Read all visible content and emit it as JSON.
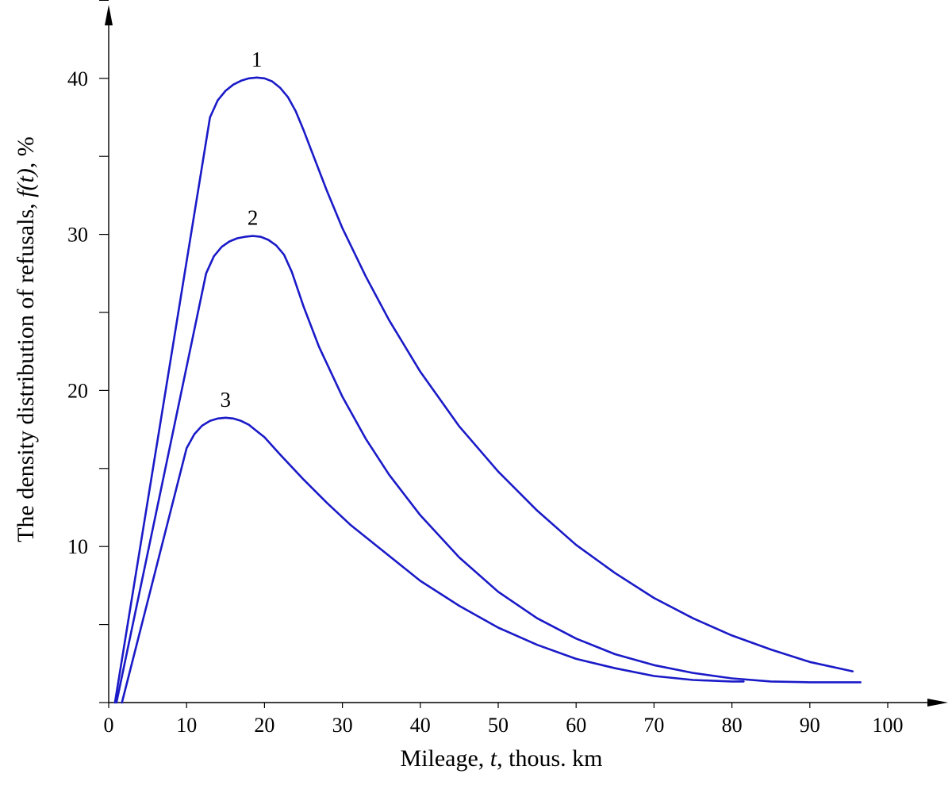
{
  "chart_data": {
    "type": "line",
    "title": "",
    "xlabel": {
      "prefix": "Mileage, ",
      "italic": "t",
      "suffix": ", thous. km"
    },
    "ylabel": {
      "prefix": "The density distribution of refusals, ",
      "italic": "f(t)",
      "suffix": ", %"
    },
    "xlim": [
      0,
      105
    ],
    "ylim": [
      0,
      45
    ],
    "x_ticks": [
      0,
      10,
      20,
      30,
      40,
      50,
      60,
      70,
      80,
      90,
      100
    ],
    "x_tick_labels": [
      "0",
      "10",
      "20",
      "30",
      "40",
      "50",
      "60",
      "70",
      "80",
      "90",
      "100"
    ],
    "y_ticks": [
      0,
      5,
      10,
      15,
      20,
      25,
      30,
      35,
      40,
      45
    ],
    "y_tick_labels": [
      "",
      "",
      "10",
      "",
      "20",
      "",
      "30",
      "",
      "40",
      ""
    ],
    "grid": false,
    "legend": "none",
    "line_color": "#1a1ac8",
    "series": [
      {
        "name": "1",
        "x": [
          0.8,
          13,
          14,
          15,
          16,
          17,
          18,
          19,
          20,
          21,
          22,
          23,
          24,
          25,
          26,
          28,
          30,
          33,
          36,
          40,
          45,
          50,
          55,
          60,
          65,
          70,
          75,
          80,
          85,
          90,
          95.5
        ],
        "y": [
          0,
          37.5,
          38.6,
          39.2,
          39.6,
          39.85,
          40.0,
          40.05,
          40.0,
          39.8,
          39.4,
          38.8,
          37.9,
          36.7,
          35.4,
          32.8,
          30.4,
          27.3,
          24.5,
          21.2,
          17.7,
          14.8,
          12.3,
          10.1,
          8.3,
          6.7,
          5.4,
          4.3,
          3.4,
          2.6,
          2.0
        ]
      },
      {
        "name": "2",
        "x": [
          1.0,
          12.5,
          13.5,
          14.5,
          15.5,
          16.5,
          17.5,
          18.5,
          19.5,
          20.5,
          21.5,
          22.5,
          23.5,
          25,
          27,
          30,
          33,
          36,
          40,
          45,
          50,
          55,
          60,
          65,
          70,
          75,
          80,
          85,
          90,
          96.5
        ],
        "y": [
          0,
          27.5,
          28.6,
          29.2,
          29.55,
          29.75,
          29.85,
          29.9,
          29.85,
          29.65,
          29.3,
          28.7,
          27.6,
          25.4,
          22.8,
          19.6,
          16.9,
          14.6,
          12.0,
          9.3,
          7.1,
          5.4,
          4.1,
          3.1,
          2.4,
          1.9,
          1.55,
          1.35,
          1.3,
          1.3
        ]
      },
      {
        "name": "3",
        "x": [
          1.7,
          10,
          11,
          12,
          13,
          14,
          15,
          16,
          17,
          18,
          19,
          20,
          22,
          25,
          28,
          31,
          35,
          40,
          45,
          50,
          55,
          60,
          65,
          70,
          75,
          80,
          81.5
        ],
        "y": [
          0,
          16.3,
          17.2,
          17.75,
          18.05,
          18.2,
          18.25,
          18.2,
          18.05,
          17.8,
          17.4,
          17.0,
          15.9,
          14.3,
          12.8,
          11.4,
          9.8,
          7.8,
          6.2,
          4.8,
          3.7,
          2.8,
          2.2,
          1.7,
          1.45,
          1.35,
          1.35
        ]
      }
    ]
  }
}
